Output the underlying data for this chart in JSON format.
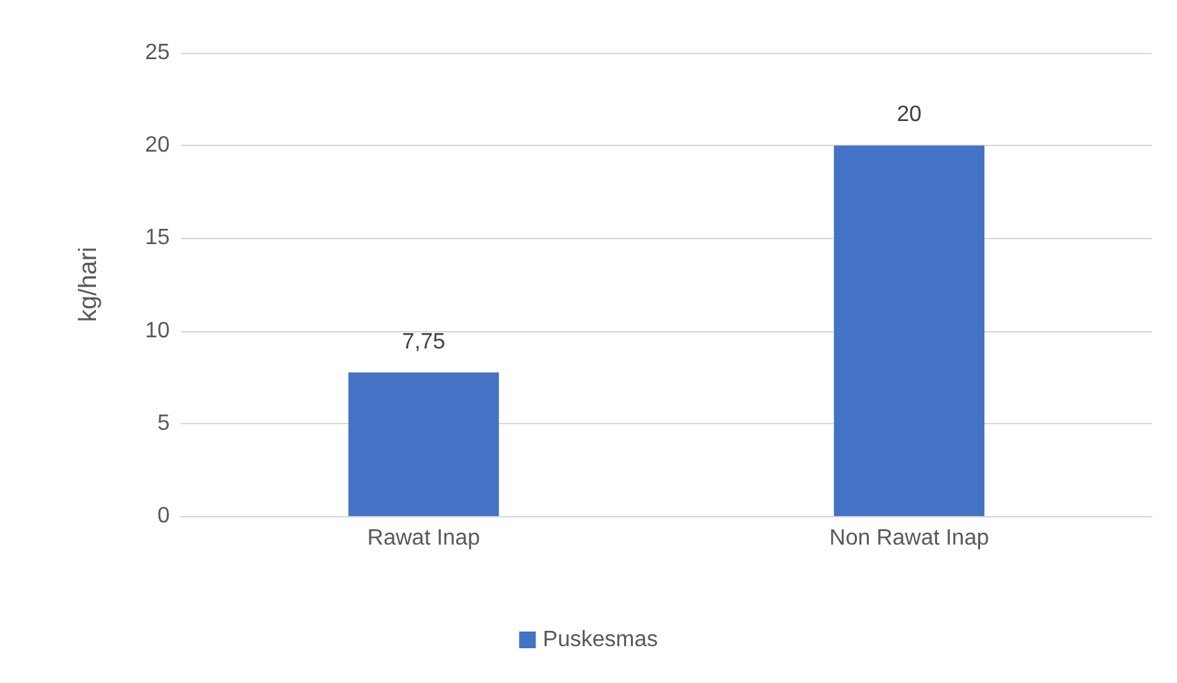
{
  "chart_data": {
    "type": "bar",
    "ylabel": "kg/hari",
    "categories": [
      "Rawat Inap",
      "Non Rawat Inap"
    ],
    "series": [
      {
        "name": "Puskesmas",
        "color": "#4472c4",
        "values": [
          7.75,
          20
        ],
        "value_labels": [
          "7,75",
          "20"
        ]
      }
    ],
    "ylim": [
      0,
      25
    ],
    "yticks": [
      0,
      5,
      10,
      15,
      20,
      25
    ],
    "grid": "y",
    "legend": "bottom"
  }
}
